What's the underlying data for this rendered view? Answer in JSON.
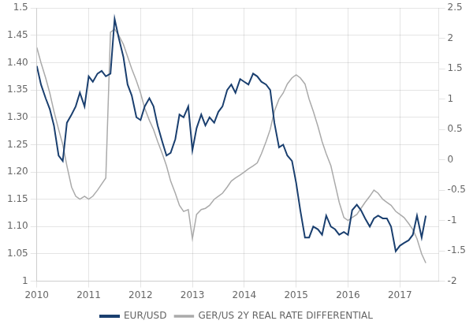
{
  "chart_data": {
    "type": "line",
    "x": [
      2010.0,
      2010.08,
      2010.17,
      2010.25,
      2010.33,
      2010.42,
      2010.5,
      2010.58,
      2010.67,
      2010.75,
      2010.83,
      2010.92,
      2011.0,
      2011.08,
      2011.17,
      2011.25,
      2011.33,
      2011.42,
      2011.5,
      2011.58,
      2011.67,
      2011.75,
      2011.83,
      2011.92,
      2012.0,
      2012.08,
      2012.17,
      2012.25,
      2012.33,
      2012.42,
      2012.5,
      2012.58,
      2012.67,
      2012.75,
      2012.83,
      2012.92,
      2013.0,
      2013.08,
      2013.17,
      2013.25,
      2013.33,
      2013.42,
      2013.5,
      2013.58,
      2013.67,
      2013.75,
      2013.83,
      2013.92,
      2014.0,
      2014.08,
      2014.17,
      2014.25,
      2014.33,
      2014.42,
      2014.5,
      2014.58,
      2014.67,
      2014.75,
      2014.83,
      2014.92,
      2015.0,
      2015.08,
      2015.17,
      2015.25,
      2015.33,
      2015.42,
      2015.5,
      2015.58,
      2015.67,
      2015.75,
      2015.83,
      2015.92,
      2016.0,
      2016.08,
      2016.17,
      2016.25,
      2016.33,
      2016.42,
      2016.5,
      2016.58,
      2016.67,
      2016.75,
      2016.83,
      2016.92,
      2017.0,
      2017.08,
      2017.17,
      2017.25,
      2017.33,
      2017.42,
      2017.5
    ],
    "series": [
      {
        "name": "EUR/USD",
        "color": "#1a3f6f",
        "axis": "y",
        "values": [
          1.394,
          1.36,
          1.335,
          1.315,
          1.285,
          1.23,
          1.22,
          1.29,
          1.305,
          1.32,
          1.345,
          1.32,
          1.375,
          1.365,
          1.38,
          1.385,
          1.375,
          1.38,
          1.48,
          1.445,
          1.41,
          1.36,
          1.34,
          1.3,
          1.295,
          1.32,
          1.335,
          1.32,
          1.285,
          1.255,
          1.23,
          1.235,
          1.26,
          1.305,
          1.3,
          1.32,
          1.24,
          1.28,
          1.305,
          1.285,
          1.3,
          1.29,
          1.31,
          1.32,
          1.35,
          1.36,
          1.345,
          1.37,
          1.365,
          1.36,
          1.38,
          1.375,
          1.365,
          1.36,
          1.35,
          1.29,
          1.245,
          1.25,
          1.23,
          1.22,
          1.18,
          1.13,
          1.08,
          1.08,
          1.1,
          1.095,
          1.085,
          1.12,
          1.1,
          1.095,
          1.085,
          1.09,
          1.085,
          1.13,
          1.14,
          1.13,
          1.115,
          1.1,
          1.115,
          1.12,
          1.115,
          1.115,
          1.1,
          1.055,
          1.065,
          1.07,
          1.075,
          1.085,
          1.12,
          1.08,
          1.12
        ]
      },
      {
        "name": "GER/US 2Y REAL RATE DIFFERENTIAL",
        "color": "#aaaaaa",
        "axis": "y2",
        "values": [
          1.85,
          1.6,
          1.35,
          1.1,
          0.8,
          0.5,
          0.25,
          -0.1,
          -0.45,
          -0.6,
          -0.65,
          -0.6,
          -0.65,
          -0.6,
          -0.5,
          -0.4,
          -0.3,
          2.1,
          2.15,
          2.05,
          1.9,
          1.7,
          1.5,
          1.3,
          1.1,
          0.85,
          0.65,
          0.5,
          0.3,
          0.1,
          -0.1,
          -0.35,
          -0.55,
          -0.75,
          -0.85,
          -0.82,
          -1.3,
          -0.9,
          -0.82,
          -0.8,
          -0.75,
          -0.65,
          -0.6,
          -0.55,
          -0.45,
          -0.35,
          -0.3,
          -0.25,
          -0.2,
          -0.15,
          -0.1,
          -0.05,
          0.1,
          0.3,
          0.5,
          0.8,
          1.0,
          1.1,
          1.25,
          1.35,
          1.4,
          1.35,
          1.25,
          1.0,
          0.8,
          0.55,
          0.3,
          0.1,
          -0.1,
          -0.4,
          -0.7,
          -0.95,
          -1.0,
          -0.95,
          -0.9,
          -0.8,
          -0.7,
          -0.6,
          -0.5,
          -0.55,
          -0.65,
          -0.7,
          -0.75,
          -0.85,
          -0.9,
          -0.95,
          -1.05,
          -1.15,
          -1.3,
          -1.55,
          -1.7
        ]
      }
    ],
    "xlim": [
      2010.0,
      2017.75
    ],
    "xticks": [
      2010,
      2011,
      2012,
      2013,
      2014,
      2015,
      2016,
      2017
    ],
    "ylim": [
      1.0,
      1.5
    ],
    "yticks": [
      1,
      1.05,
      {
        "value": 1.1,
        "label": "1.10"
      },
      1.15,
      {
        "value": 1.2,
        "label": "1.20"
      },
      1.25,
      {
        "value": 1.3,
        "label": "1.30"
      },
      1.35,
      {
        "value": 1.4,
        "label": "1.40"
      },
      1.45,
      1.5
    ],
    "y2lim": [
      -2.0,
      2.5
    ],
    "y2ticks": [
      -2,
      -1.5,
      -1,
      -0.5,
      0,
      0.5,
      1,
      1.5,
      2,
      2.5
    ],
    "grid": true,
    "legend": "bottom"
  }
}
